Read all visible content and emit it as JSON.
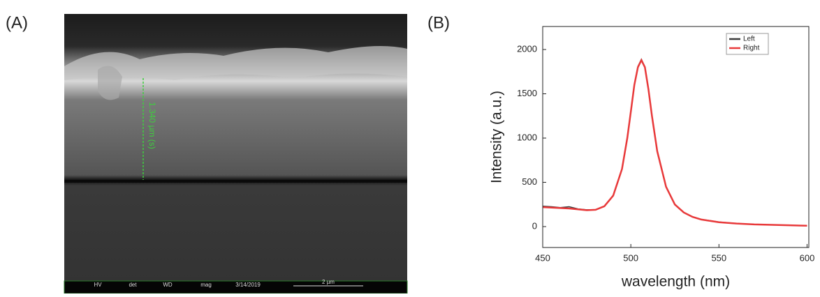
{
  "panels": {
    "a": {
      "label": "(A)",
      "scale_label": "1.340 µm (s)",
      "info_bar": [
        "HV",
        "det",
        "WD",
        "mag",
        "3/14/2019",
        "2 µm"
      ]
    },
    "b": {
      "label": "(B)"
    }
  },
  "chart_data": {
    "type": "line",
    "xlabel": "wavelength (nm)",
    "ylabel": "Intensity (a.u.)",
    "x": [
      450,
      455,
      460,
      465,
      470,
      475,
      480,
      485,
      490,
      495,
      498,
      500,
      502,
      504,
      506,
      508,
      510,
      512,
      515,
      520,
      525,
      530,
      535,
      540,
      550,
      560,
      570,
      580,
      590,
      600
    ],
    "series": [
      {
        "name": "Left",
        "color": "#3a3a3a",
        "values": [
          230,
          225,
          215,
          225,
          200,
          190,
          192,
          232,
          352,
          652,
          1002,
          1305,
          1605,
          1810,
          1890,
          1805,
          1552,
          1252,
          852,
          452,
          252,
          162,
          112,
          82,
          52,
          36,
          26,
          20,
          15,
          10
        ]
      },
      {
        "name": "Right",
        "color": "#e8393a",
        "values": [
          220,
          215,
          210,
          205,
          195,
          185,
          190,
          230,
          350,
          650,
          1000,
          1300,
          1600,
          1800,
          1880,
          1800,
          1550,
          1250,
          850,
          450,
          250,
          160,
          110,
          80,
          50,
          35,
          25,
          20,
          15,
          10
        ]
      }
    ],
    "xlim": [
      450,
      601
    ],
    "ylim": [
      -236,
      2260
    ],
    "xticks": [
      450,
      500,
      550,
      600
    ],
    "yticks": [
      0,
      500,
      1000,
      1500,
      2000
    ],
    "legend": "upper right"
  }
}
